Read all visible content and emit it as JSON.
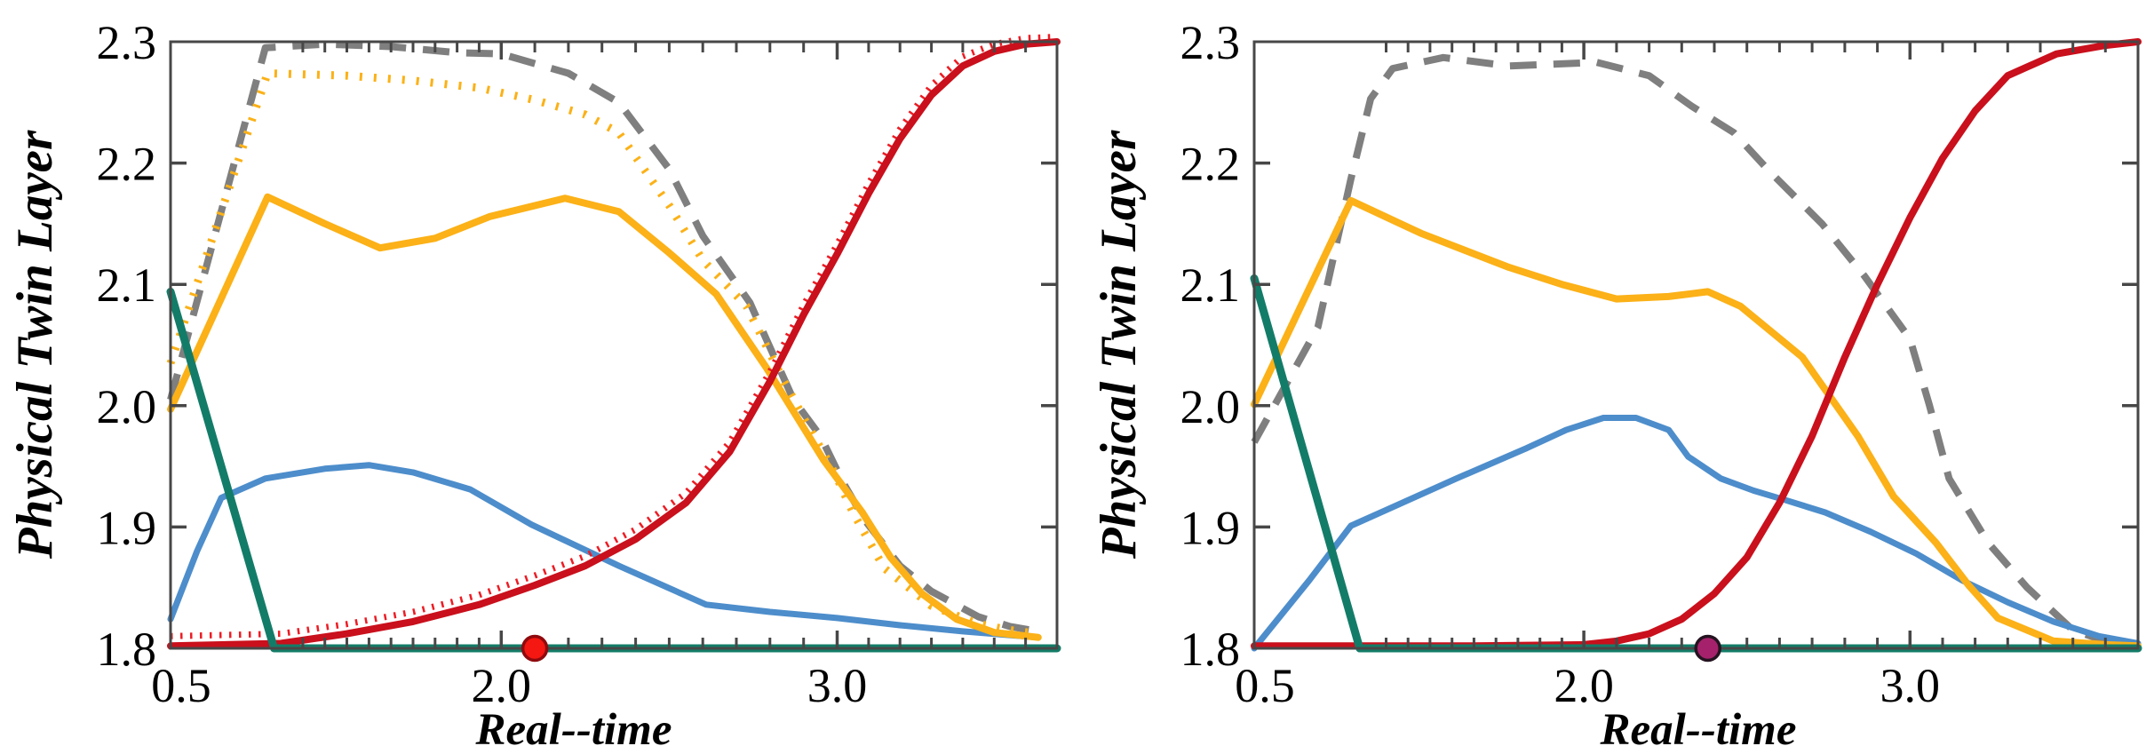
{
  "figure": {
    "background": "#ffffff",
    "spine_color": "#474747",
    "text_color": "#000000",
    "panels": 2
  },
  "chart_data": [
    {
      "type": "line",
      "title": "",
      "xlabel": "Real--time",
      "ylabel": "Physical Twin Layer",
      "xlim": [
        0.5,
        3.7
      ],
      "ylim": [
        1.8,
        2.3
      ],
      "grid": false,
      "legend_position": "none",
      "x_scale_anchors": [
        [
          0.5,
          0
        ],
        [
          2.0,
          0.373
        ],
        [
          3.0,
          0.752
        ],
        [
          3.7,
          1
        ]
      ],
      "x_ticks": [
        {
          "v": 0.5,
          "label": "0.5"
        },
        {
          "v": 2.0,
          "label": "2.0"
        },
        {
          "v": 3.0,
          "label": "3.0"
        }
      ],
      "x_minor_ticks": [
        1.1,
        1.2,
        1.3,
        1.4,
        1.5,
        1.6,
        1.7,
        1.8,
        1.9,
        2.1,
        2.2,
        2.3,
        2.4,
        2.5,
        2.6,
        2.7,
        2.8,
        2.9,
        3.1,
        3.2,
        3.3,
        3.4,
        3.5,
        3.6
      ],
      "y_ticks": [
        {
          "v": 1.8,
          "label": "1.8"
        },
        {
          "v": 1.9,
          "label": "1.9"
        },
        {
          "v": 2.0,
          "label": "2.0"
        },
        {
          "v": 2.1,
          "label": "2.1"
        },
        {
          "v": 2.2,
          "label": "2.2"
        },
        {
          "v": 2.3,
          "label": "2.3"
        }
      ],
      "series": [
        {
          "name": "gray-dashed",
          "color": "#7F7F7F",
          "style": "dashed",
          "width": 8,
          "points": [
            [
              0.5,
              2.005
            ],
            [
              0.93,
              2.295
            ],
            [
              1.2,
              2.298
            ],
            [
              1.5,
              2.296
            ],
            [
              1.8,
              2.291
            ],
            [
              2.0,
              2.29
            ],
            [
              2.1,
              2.282
            ],
            [
              2.2,
              2.274
            ],
            [
              2.35,
              2.25
            ],
            [
              2.5,
              2.195
            ],
            [
              2.6,
              2.14
            ],
            [
              2.74,
              2.085
            ],
            [
              2.87,
              2.005
            ],
            [
              2.95,
              1.975
            ],
            [
              3.02,
              1.936
            ],
            [
              3.09,
              1.905
            ],
            [
              3.2,
              1.868
            ],
            [
              3.3,
              1.847
            ],
            [
              3.45,
              1.826
            ],
            [
              3.55,
              1.818
            ],
            [
              3.64,
              1.814
            ]
          ]
        },
        {
          "name": "orange-dotted",
          "color": "#FBB117",
          "style": "dotted",
          "width": 9,
          "points": [
            [
              0.5,
              2.035
            ],
            [
              0.94,
              2.274
            ],
            [
              1.3,
              2.272
            ],
            [
              1.6,
              2.268
            ],
            [
              1.9,
              2.262
            ],
            [
              2.1,
              2.252
            ],
            [
              2.25,
              2.24
            ],
            [
              2.35,
              2.225
            ],
            [
              2.5,
              2.165
            ],
            [
              2.6,
              2.12
            ],
            [
              2.73,
              2.082
            ],
            [
              2.84,
              2.021
            ],
            [
              2.91,
              1.985
            ],
            [
              2.99,
              1.946
            ],
            [
              3.05,
              1.912
            ],
            [
              3.15,
              1.866
            ],
            [
              3.3,
              1.835
            ],
            [
              3.45,
              1.82
            ],
            [
              3.55,
              1.815
            ],
            [
              3.64,
              1.812
            ]
          ]
        },
        {
          "name": "blue-solid",
          "color": "#4D8DCB",
          "style": "solid",
          "width": 7,
          "points": [
            [
              0.5,
              1.824
            ],
            [
              0.62,
              1.88
            ],
            [
              0.73,
              1.924
            ],
            [
              0.93,
              1.94
            ],
            [
              1.2,
              1.948
            ],
            [
              1.4,
              1.951
            ],
            [
              1.6,
              1.945
            ],
            [
              1.86,
              1.931
            ],
            [
              2.09,
              1.902
            ],
            [
              2.35,
              1.868
            ],
            [
              2.61,
              1.836
            ],
            [
              2.8,
              1.83
            ],
            [
              3.0,
              1.825
            ],
            [
              3.2,
              1.819
            ],
            [
              3.4,
              1.814
            ],
            [
              3.64,
              1.809
            ]
          ]
        },
        {
          "name": "orange-solid",
          "color": "#FBB117",
          "style": "solid",
          "width": 8,
          "points": [
            [
              0.5,
              1.997
            ],
            [
              0.94,
              2.172
            ],
            [
              1.2,
              2.15
            ],
            [
              1.45,
              2.13
            ],
            [
              1.7,
              2.138
            ],
            [
              1.95,
              2.156
            ],
            [
              2.19,
              2.171
            ],
            [
              2.35,
              2.16
            ],
            [
              2.5,
              2.126
            ],
            [
              2.64,
              2.092
            ],
            [
              2.79,
              2.031
            ],
            [
              2.96,
              1.955
            ],
            [
              3.08,
              1.912
            ],
            [
              3.17,
              1.875
            ],
            [
              3.27,
              1.845
            ],
            [
              3.38,
              1.824
            ],
            [
              3.5,
              1.813
            ],
            [
              3.64,
              1.809
            ]
          ]
        },
        {
          "name": "red-dotted",
          "color": "#ED1C24",
          "style": "findot",
          "width": 7,
          "points": [
            [
              0.5,
              1.81
            ],
            [
              1.0,
              1.812
            ],
            [
              1.3,
              1.82
            ],
            [
              1.6,
              1.83
            ],
            [
              1.9,
              1.844
            ],
            [
              2.1,
              1.86
            ],
            [
              2.25,
              1.876
            ],
            [
              2.4,
              1.898
            ],
            [
              2.55,
              1.928
            ],
            [
              2.68,
              1.97
            ],
            [
              2.8,
              2.028
            ],
            [
              2.9,
              2.083
            ],
            [
              3.0,
              2.133
            ],
            [
              3.1,
              2.183
            ],
            [
              3.2,
              2.228
            ],
            [
              3.3,
              2.264
            ],
            [
              3.4,
              2.288
            ],
            [
              3.5,
              2.298
            ],
            [
              3.6,
              2.303
            ],
            [
              3.7,
              2.304
            ]
          ]
        },
        {
          "name": "red-solid",
          "color": "#C9101C",
          "style": "solid",
          "width": 8,
          "points": [
            [
              0.5,
              1.802
            ],
            [
              1.0,
              1.804
            ],
            [
              1.3,
              1.812
            ],
            [
              1.6,
              1.822
            ],
            [
              1.9,
              1.836
            ],
            [
              2.1,
              1.852
            ],
            [
              2.25,
              1.868
            ],
            [
              2.4,
              1.89
            ],
            [
              2.55,
              1.92
            ],
            [
              2.68,
              1.962
            ],
            [
              2.8,
              2.02
            ],
            [
              2.9,
              2.075
            ],
            [
              3.0,
              2.125
            ],
            [
              3.1,
              2.175
            ],
            [
              3.2,
              2.22
            ],
            [
              3.3,
              2.256
            ],
            [
              3.4,
              2.28
            ],
            [
              3.5,
              2.292
            ],
            [
              3.6,
              2.298
            ],
            [
              3.7,
              2.3
            ]
          ]
        },
        {
          "name": "teal-solid",
          "color": "#137C68",
          "style": "solid",
          "width": 9,
          "points": [
            [
              0.5,
              2.094
            ],
            [
              0.97,
              1.8
            ],
            [
              3.7,
              1.8
            ]
          ]
        }
      ],
      "markers": [
        {
          "name": "red-dot-marker",
          "x": 2.1,
          "y": 1.8,
          "fill": "#F51711",
          "stroke": "#8F0A0E"
        }
      ]
    },
    {
      "type": "line",
      "title": "",
      "xlabel": "Real--time",
      "ylabel": "Physical Twin Layer",
      "xlim": [
        0.5,
        3.7
      ],
      "ylim": [
        1.8,
        2.3
      ],
      "grid": false,
      "legend_position": "none",
      "x_scale_anchors": [
        [
          0.5,
          0
        ],
        [
          2.0,
          0.373
        ],
        [
          3.0,
          0.742
        ],
        [
          3.7,
          1
        ]
      ],
      "x_ticks": [
        {
          "v": 0.5,
          "label": "0.5"
        },
        {
          "v": 2.0,
          "label": "2.0"
        },
        {
          "v": 3.0,
          "label": "3.0"
        }
      ],
      "x_minor_ticks": [
        1.1,
        1.2,
        1.3,
        1.4,
        1.5,
        1.6,
        1.7,
        1.8,
        1.9,
        2.1,
        2.2,
        2.3,
        2.4,
        2.5,
        2.6,
        2.7,
        2.8,
        2.9,
        3.1,
        3.2,
        3.3,
        3.4,
        3.5,
        3.6
      ],
      "y_ticks": [
        {
          "v": 1.8,
          "label": "1.8"
        },
        {
          "v": 1.9,
          "label": "1.9"
        },
        {
          "v": 2.0,
          "label": "2.0"
        },
        {
          "v": 2.1,
          "label": "2.1"
        },
        {
          "v": 2.2,
          "label": "2.2"
        },
        {
          "v": 2.3,
          "label": "2.3"
        }
      ],
      "series": [
        {
          "name": "gray-dashed",
          "color": "#7F7F7F",
          "style": "dashed",
          "width": 8,
          "points": [
            [
              0.5,
              1.97
            ],
            [
              0.79,
              2.065
            ],
            [
              0.94,
              2.187
            ],
            [
              1.03,
              2.253
            ],
            [
              1.13,
              2.278
            ],
            [
              1.36,
              2.287
            ],
            [
              1.66,
              2.28
            ],
            [
              2.04,
              2.283
            ],
            [
              2.2,
              2.272
            ],
            [
              2.33,
              2.247
            ],
            [
              2.46,
              2.225
            ],
            [
              2.57,
              2.193
            ],
            [
              2.73,
              2.15
            ],
            [
              2.86,
              2.107
            ],
            [
              3.0,
              2.055
            ],
            [
              3.06,
              2.0
            ],
            [
              3.12,
              1.94
            ],
            [
              3.24,
              1.887
            ],
            [
              3.36,
              1.85
            ],
            [
              3.5,
              1.815
            ],
            [
              3.6,
              1.806
            ],
            [
              3.7,
              1.803
            ]
          ]
        },
        {
          "name": "blue-solid",
          "color": "#4D8DCB",
          "style": "solid",
          "width": 7,
          "points": [
            [
              0.5,
              1.8
            ],
            [
              0.75,
              1.856
            ],
            [
              0.94,
              1.901
            ],
            [
              1.1,
              1.914
            ],
            [
              1.42,
              1.94
            ],
            [
              1.74,
              1.965
            ],
            [
              1.92,
              1.98
            ],
            [
              2.06,
              1.99
            ],
            [
              2.16,
              1.99
            ],
            [
              2.26,
              1.98
            ],
            [
              2.32,
              1.958
            ],
            [
              2.42,
              1.94
            ],
            [
              2.52,
              1.93
            ],
            [
              2.62,
              1.922
            ],
            [
              2.74,
              1.912
            ],
            [
              2.88,
              1.896
            ],
            [
              3.02,
              1.878
            ],
            [
              3.16,
              1.856
            ],
            [
              3.3,
              1.838
            ],
            [
              3.44,
              1.822
            ],
            [
              3.58,
              1.81
            ],
            [
              3.7,
              1.804
            ]
          ]
        },
        {
          "name": "orange-solid",
          "color": "#FBB117",
          "style": "solid",
          "width": 8,
          "points": [
            [
              0.5,
              2.001
            ],
            [
              0.94,
              2.169
            ],
            [
              1.26,
              2.142
            ],
            [
              1.66,
              2.114
            ],
            [
              1.9,
              2.1
            ],
            [
              2.1,
              2.088
            ],
            [
              2.26,
              2.09
            ],
            [
              2.38,
              2.094
            ],
            [
              2.48,
              2.082
            ],
            [
              2.67,
              2.04
            ],
            [
              2.84,
              1.975
            ],
            [
              2.95,
              1.925
            ],
            [
              3.08,
              1.887
            ],
            [
              3.18,
              1.852
            ],
            [
              3.27,
              1.825
            ],
            [
              3.44,
              1.806
            ],
            [
              3.6,
              1.803
            ],
            [
              3.7,
              1.802
            ]
          ]
        },
        {
          "name": "red-solid",
          "color": "#C9101C",
          "style": "solid",
          "width": 8,
          "points": [
            [
              0.5,
              1.802
            ],
            [
              1.5,
              1.802
            ],
            [
              2.0,
              1.803
            ],
            [
              2.1,
              1.806
            ],
            [
              2.2,
              1.812
            ],
            [
              2.3,
              1.824
            ],
            [
              2.4,
              1.845
            ],
            [
              2.5,
              1.875
            ],
            [
              2.6,
              1.92
            ],
            [
              2.7,
              1.975
            ],
            [
              2.8,
              2.04
            ],
            [
              2.9,
              2.1
            ],
            [
              3.0,
              2.155
            ],
            [
              3.1,
              2.204
            ],
            [
              3.2,
              2.243
            ],
            [
              3.3,
              2.272
            ],
            [
              3.45,
              2.29
            ],
            [
              3.6,
              2.297
            ],
            [
              3.7,
              2.3
            ]
          ]
        },
        {
          "name": "teal-solid",
          "color": "#137C68",
          "style": "solid",
          "width": 9,
          "points": [
            [
              0.5,
              2.105
            ],
            [
              0.98,
              1.8
            ],
            [
              3.7,
              1.8
            ]
          ]
        }
      ],
      "markers": [
        {
          "name": "purple-dot-marker",
          "x": 2.38,
          "y": 1.8,
          "fill": "#A6216B",
          "stroke": "#241320"
        }
      ]
    }
  ]
}
